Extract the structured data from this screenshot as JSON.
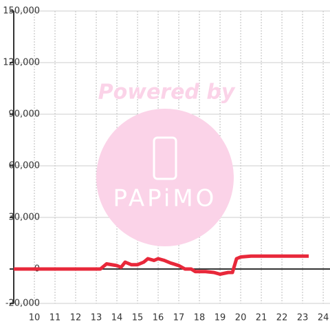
{
  "chart_data": {
    "type": "line",
    "watermark": {
      "text": "Powered by",
      "logo": "PAPiMO"
    },
    "x": [
      9,
      13.2,
      13.5,
      14.0,
      14.2,
      14.4,
      14.7,
      15.0,
      15.3,
      15.5,
      15.8,
      16.0,
      16.3,
      16.6,
      17.0,
      17.3,
      17.6,
      17.8,
      18.3,
      18.7,
      19.0,
      19.4,
      19.6,
      19.8,
      20.0,
      20.5,
      23.3
    ],
    "series": [
      {
        "color": "#e8283a",
        "values": [
          0,
          0,
          3000,
          2000,
          1000,
          4000,
          2500,
          2500,
          4000,
          6000,
          5000,
          6000,
          5000,
          3500,
          2000,
          0,
          0,
          -1500,
          -1500,
          -2000,
          -3000,
          -2000,
          -2000,
          6000,
          7000,
          7500,
          7500
        ]
      }
    ],
    "xlim": [
      9,
      24.33
    ],
    "xticks": [
      10,
      11,
      12,
      13,
      14,
      15,
      16,
      17,
      18,
      19,
      20,
      21,
      22,
      23,
      24
    ],
    "ylim": [
      -20000,
      150000
    ],
    "yticks": [
      {
        "value": -20000,
        "label": "-20,000"
      },
      0,
      {
        "value": 30000,
        "label": "30,000"
      },
      {
        "value": 60000,
        "label": "60,000"
      },
      {
        "value": 90000,
        "label": "90,000"
      },
      {
        "value": 120000,
        "label": "120,000"
      },
      {
        "value": 150000,
        "label": "150,000"
      }
    ],
    "grid": true
  }
}
